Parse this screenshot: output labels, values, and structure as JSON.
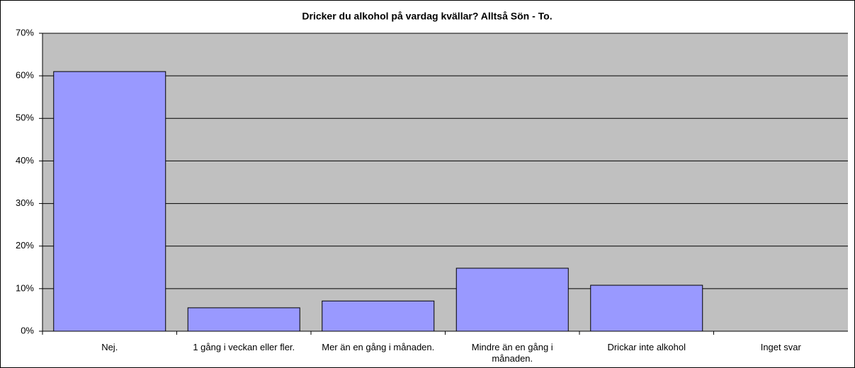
{
  "chart_data": {
    "type": "bar",
    "title": "Dricker du alkohol på vardag kvällar? Alltså Sön - To.",
    "categories": [
      "Nej.",
      "1 gång i veckan eller fler.",
      "Mer än en gång i månaden.",
      "Mindre än en gång i månaden.",
      "Drickar inte alkohol",
      "Inget svar"
    ],
    "values": [
      61.0,
      5.5,
      7.1,
      14.8,
      10.8,
      0
    ],
    "color": "#9999ff",
    "ylim": [
      0,
      70
    ],
    "yticks": [
      {
        "value": 0,
        "label": "0%"
      },
      {
        "value": 10,
        "label": "10%"
      },
      {
        "value": 20,
        "label": "20%"
      },
      {
        "value": 30,
        "label": "30%"
      },
      {
        "value": 40,
        "label": "40%"
      },
      {
        "value": 50,
        "label": "50%"
      },
      {
        "value": 60,
        "label": "60%"
      },
      {
        "value": 70,
        "label": "70%"
      }
    ],
    "grid": true
  }
}
